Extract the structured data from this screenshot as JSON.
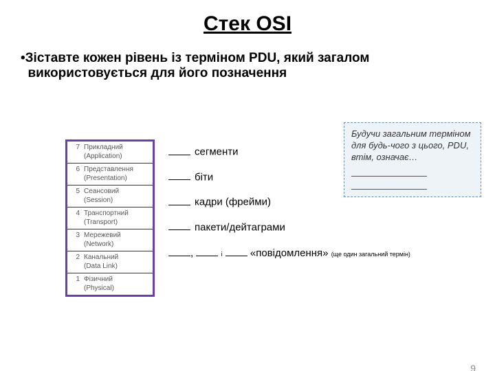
{
  "title": "Стек OSI",
  "instruction_bullet": "•",
  "instruction": "Зіставте кожен рівень із терміном PDU, який загалом використовується для його позначення",
  "osi_layers": [
    {
      "num": "7",
      "name_uk": "Прикладний",
      "name_en": "(Application)"
    },
    {
      "num": "6",
      "name_uk": "Представлення",
      "name_en": "(Presentation)"
    },
    {
      "num": "5",
      "name_uk": "Сеансовий",
      "name_en": "(Session)"
    },
    {
      "num": "4",
      "name_uk": "Транспортний",
      "name_en": "(Transport)"
    },
    {
      "num": "3",
      "name_uk": "Мережевий",
      "name_en": "(Network)"
    },
    {
      "num": "2",
      "name_uk": "Канальний",
      "name_en": "(Data Link)"
    },
    {
      "num": "1",
      "name_uk": "Фізичний",
      "name_en": "(Physical)"
    }
  ],
  "pdu_items": [
    "сегменти",
    "біти",
    "кадри (фрейми)",
    "пакети/дейтаграми"
  ],
  "message_joiner": "і",
  "message_term": "«повідомлення»",
  "message_note": "(ще один загальний термін)",
  "callout_text": "Будучи загальним терміном для будь-чого з цього, PDU, втім, означає…",
  "page_number": "9",
  "colors": {
    "table_border": "#6b3fa8",
    "callout_bg": "#eef3f8",
    "callout_border": "#6a8fb5",
    "text_muted": "#555555"
  }
}
